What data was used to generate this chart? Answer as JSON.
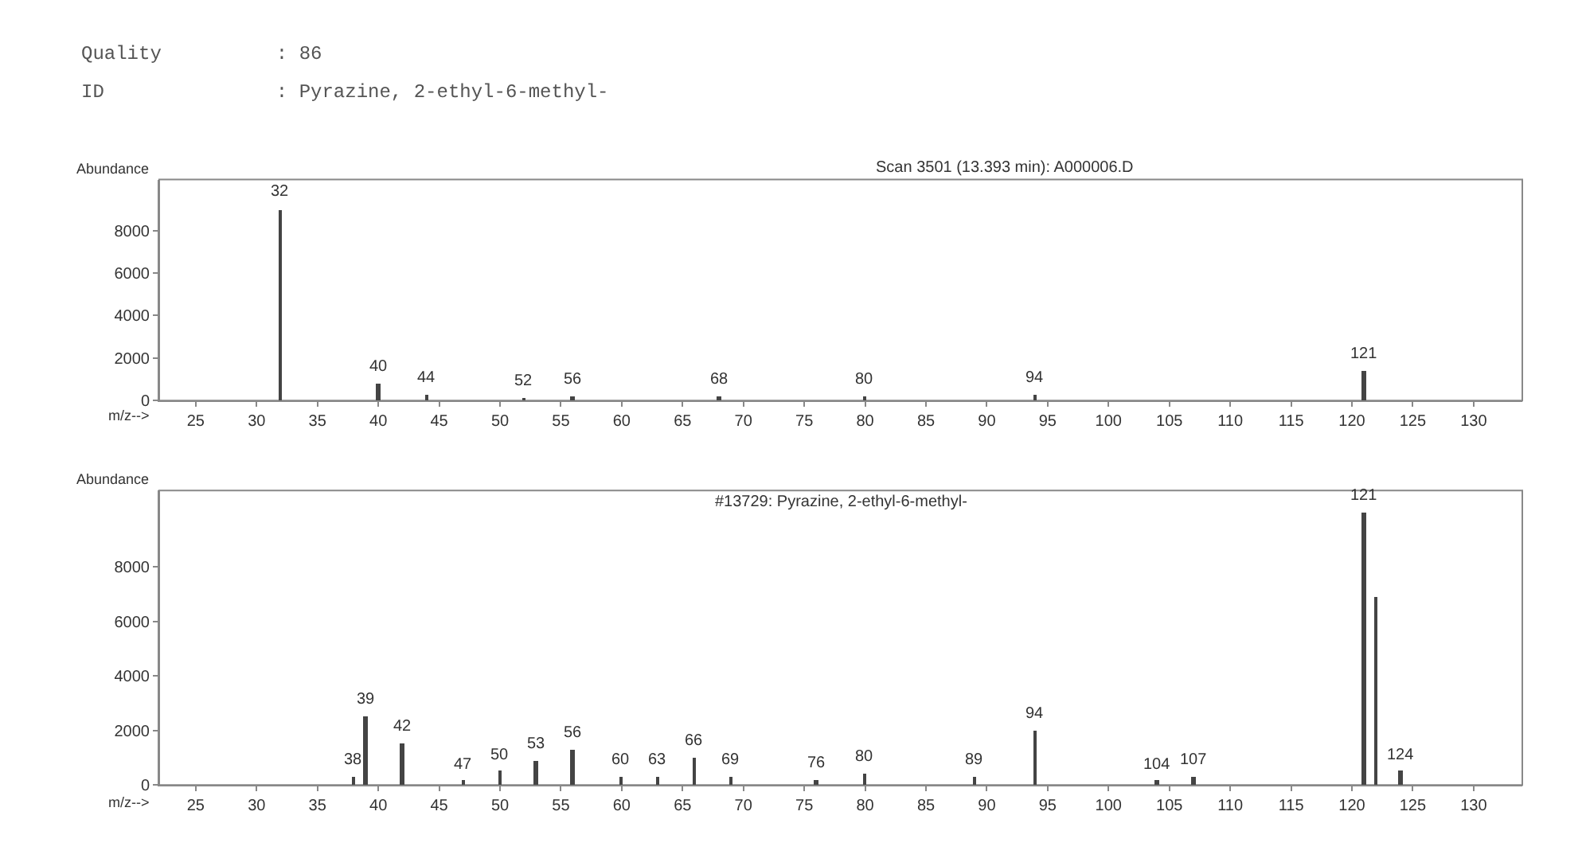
{
  "chart_data": [
    {
      "type": "bar",
      "title": "Scan 3501 (13.393 min): A000006.D",
      "xlabel": "m/z-->",
      "ylabel": "Abundance",
      "x": [
        32,
        40,
        44,
        52,
        56,
        68,
        80,
        94,
        121
      ],
      "series": [
        {
          "color": "#444444",
          "values": [
            9000,
            800,
            300,
            150,
            200,
            200,
            200,
            300,
            1400
          ]
        }
      ],
      "xlim": [
        22,
        134
      ],
      "xticks": [
        25,
        30,
        35,
        40,
        45,
        50,
        55,
        60,
        65,
        70,
        75,
        80,
        85,
        90,
        95,
        100,
        105,
        110,
        115,
        120,
        125,
        130
      ],
      "ylim": [
        0,
        10400
      ],
      "yticks": [
        0,
        2000,
        4000,
        6000,
        8000
      ],
      "grid": false,
      "annotations": [
        "Quality          : 86",
        "ID               : Pyrazine, 2-ethyl-6-methyl-",
        {
          "text": "32",
          "x": 32,
          "y": 9000
        },
        {
          "text": "40",
          "x": 40,
          "y": 800
        },
        {
          "text": "44",
          "x": 44,
          "y": 300
        },
        {
          "text": "52",
          "x": 52,
          "y": 150
        },
        {
          "text": "56",
          "x": 56,
          "y": 200
        },
        {
          "text": "68",
          "x": 68,
          "y": 200
        },
        {
          "text": "80",
          "x": 80,
          "y": 200
        },
        {
          "text": "94",
          "x": 94,
          "y": 300
        },
        {
          "text": "121",
          "x": 121,
          "y": 1400
        }
      ]
    },
    {
      "type": "bar",
      "title": "#13729: Pyrazine, 2-ethyl-6-methyl-",
      "xlabel": "m/z-->",
      "ylabel": "Abundance",
      "x": [
        38,
        39,
        42,
        47,
        50,
        53,
        56,
        60,
        63,
        66,
        69,
        76,
        80,
        89,
        94,
        104,
        107,
        121,
        122,
        124
      ],
      "series": [
        {
          "color": "#444444",
          "values": [
            300,
            2500,
            1500,
            150,
            500,
            900,
            1300,
            300,
            300,
            1000,
            300,
            200,
            400,
            300,
            2000,
            150,
            300,
            10000,
            6900,
            500
          ]
        }
      ],
      "xlim": [
        22,
        134
      ],
      "xticks": [
        25,
        30,
        35,
        40,
        45,
        50,
        55,
        60,
        65,
        70,
        75,
        80,
        85,
        90,
        95,
        100,
        105,
        110,
        115,
        120,
        125,
        130
      ],
      "ylim": [
        0,
        10800
      ],
      "yticks": [
        0,
        2000,
        4000,
        6000,
        8000
      ],
      "grid": false,
      "annotations": [
        {
          "text": "38",
          "x": 38,
          "y": 300
        },
        {
          "text": "39",
          "x": 39,
          "y": 2500
        },
        {
          "text": "42",
          "x": 42,
          "y": 1500
        },
        {
          "text": "47",
          "x": 47,
          "y": 150
        },
        {
          "text": "50",
          "x": 50,
          "y": 500
        },
        {
          "text": "53",
          "x": 53,
          "y": 900
        },
        {
          "text": "56",
          "x": 56,
          "y": 1300
        },
        {
          "text": "60",
          "x": 60,
          "y": 300
        },
        {
          "text": "63",
          "x": 63,
          "y": 300
        },
        {
          "text": "66",
          "x": 66,
          "y": 1000
        },
        {
          "text": "69",
          "x": 69,
          "y": 300
        },
        {
          "text": "76",
          "x": 76,
          "y": 200
        },
        {
          "text": "80",
          "x": 80,
          "y": 400
        },
        {
          "text": "89",
          "x": 89,
          "y": 300
        },
        {
          "text": "94",
          "x": 94,
          "y": 2000
        },
        {
          "text": "104",
          "x": 104,
          "y": 150
        },
        {
          "text": "107",
          "x": 107,
          "y": 300
        },
        {
          "text": "121",
          "x": 121,
          "y": 10000
        },
        {
          "text": "124",
          "x": 124,
          "y": 500
        }
      ]
    }
  ]
}
